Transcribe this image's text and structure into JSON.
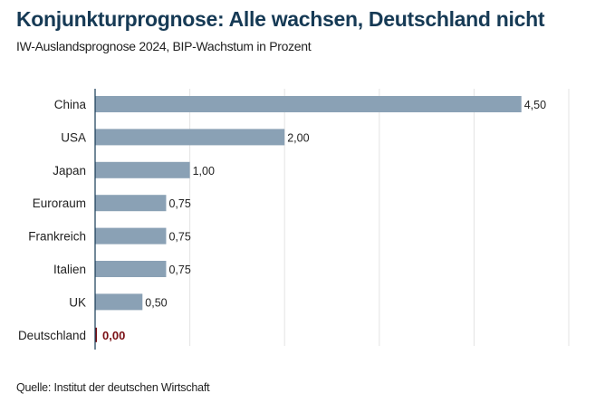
{
  "chart_data": {
    "type": "bar",
    "orientation": "horizontal",
    "title": "Konjunkturprognose: Alle wachsen, Deutschland nicht",
    "subtitle": "IW-Auslandsprognose 2024, BIP-Wachstum in Prozent",
    "source": "Quelle: Institut der deutschen Wirtschaft",
    "categories": [
      "China",
      "USA",
      "Japan",
      "Euroraum",
      "Frankreich",
      "Italien",
      "UK",
      "Deutschland"
    ],
    "values": [
      4.5,
      2.0,
      1.0,
      0.75,
      0.75,
      0.75,
      0.5,
      0.0
    ],
    "data_labels": [
      "4,50",
      "2,00",
      "1,00",
      "0,75",
      "0,75",
      "0,75",
      "0,50",
      "0,00"
    ],
    "xlim": [
      0,
      5
    ],
    "grid": true,
    "colors": {
      "bar": "#8aa1b5",
      "highlight": "#7a0f14",
      "title": "#163a55"
    },
    "highlight_category": "Deutschland"
  }
}
